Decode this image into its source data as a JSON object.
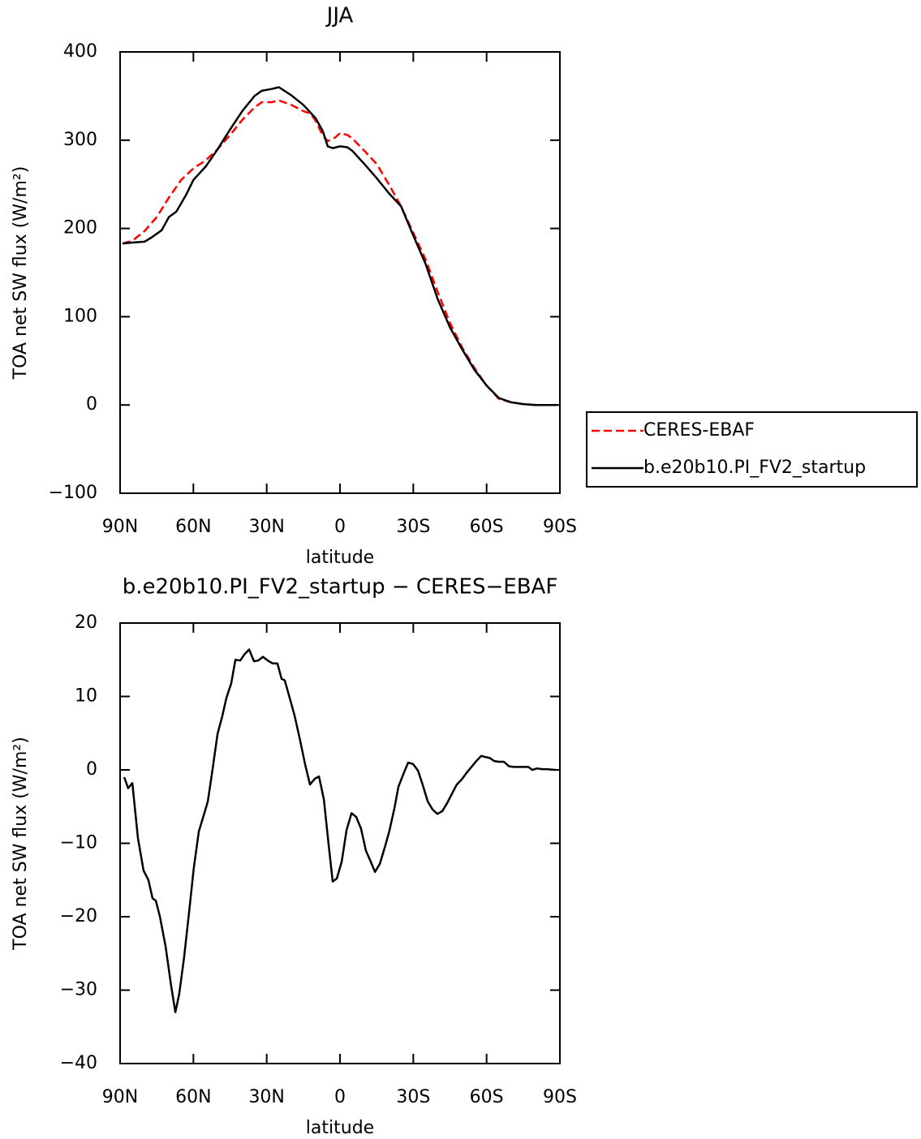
{
  "chart_data": [
    {
      "type": "line",
      "title": "JJA",
      "xlabel": "latitude",
      "ylabel": "TOA net SW flux (W/m²)",
      "xlim": [
        90,
        -90
      ],
      "ylim": [
        -100,
        400
      ],
      "xticks": [
        {
          "value": 90,
          "label": "90N"
        },
        {
          "value": 60,
          "label": "60N"
        },
        {
          "value": 30,
          "label": "30N"
        },
        0,
        {
          "value": -30,
          "label": "30S"
        },
        {
          "value": -60,
          "label": "60S"
        },
        {
          "value": -90,
          "label": "90S"
        }
      ],
      "yticks": [
        {
          "value": -100,
          "label": "−100"
        },
        0,
        100,
        200,
        300,
        400
      ],
      "legend": "outside-right",
      "series": [
        {
          "name": "CERES-EBAF",
          "color": "#ff0000",
          "dash": true,
          "x": [
            89,
            85,
            80,
            75,
            70,
            65,
            60,
            55,
            50,
            45,
            40,
            35,
            32,
            28,
            25,
            20,
            15,
            12,
            10,
            7,
            5,
            2,
            0,
            -3,
            -5,
            -10,
            -15,
            -20,
            -25,
            -30,
            -35,
            -40,
            -45,
            -50,
            -55,
            -60,
            -65,
            -70,
            -75,
            -80,
            -85,
            -89
          ],
          "values": [
            183,
            186,
            197,
            213,
            235,
            255,
            268,
            277,
            290,
            306,
            323,
            337,
            343,
            343,
            345,
            340,
            333,
            330,
            322,
            305,
            299,
            303,
            308,
            306,
            302,
            288,
            273,
            250,
            225,
            195,
            165,
            128,
            93,
            65,
            42,
            22,
            7,
            3,
            1,
            0,
            0,
            0
          ]
        },
        {
          "name": "b.e20b10.PI_FV2_startup",
          "color": "#000000",
          "dash": false,
          "x": [
            89,
            85,
            80,
            77,
            73,
            70,
            67,
            63,
            60,
            55,
            50,
            45,
            40,
            35,
            32,
            28,
            25,
            20,
            15,
            10,
            7,
            5,
            3,
            0,
            -3,
            -5,
            -10,
            -15,
            -20,
            -25,
            -30,
            -35,
            -40,
            -45,
            -50,
            -55,
            -60,
            -65,
            -70,
            -75,
            -80,
            -85,
            -89
          ],
          "values": [
            183,
            184,
            185,
            190,
            198,
            213,
            219,
            238,
            255,
            270,
            290,
            312,
            333,
            350,
            356,
            358,
            360,
            351,
            340,
            325,
            310,
            293,
            291,
            293,
            292,
            288,
            273,
            257,
            240,
            225,
            192,
            160,
            120,
            88,
            63,
            40,
            22,
            8,
            3,
            1,
            0,
            0,
            0
          ]
        }
      ]
    },
    {
      "type": "line",
      "title": "b.e20b10.PI_FV2_startup − CERES−EBAF",
      "xlabel": "latitude",
      "ylabel": "TOA net SW flux (W/m²)",
      "xlim": [
        90,
        -90
      ],
      "ylim": [
        -40,
        20
      ],
      "xticks": [
        {
          "value": 90,
          "label": "90N"
        },
        {
          "value": 60,
          "label": "60N"
        },
        {
          "value": 30,
          "label": "30N"
        },
        0,
        {
          "value": -30,
          "label": "30S"
        },
        {
          "value": -60,
          "label": "60S"
        },
        {
          "value": -90,
          "label": "90S"
        }
      ],
      "yticks": [
        {
          "value": -40,
          "label": "−40"
        },
        {
          "value": -30,
          "label": "−30"
        },
        {
          "value": -20,
          "label": "−20"
        },
        {
          "value": -10,
          "label": "−10"
        },
        0,
        10,
        20
      ],
      "color": "#000000",
      "x": [
        88.3,
        86.7,
        85,
        82.7,
        80.4,
        78.4,
        76.7,
        75.4,
        73.7,
        71.4,
        69.1,
        67.4,
        65.8,
        63.8,
        61.8,
        59.8,
        57.8,
        55.8,
        54.1,
        52.1,
        50.1,
        48.2,
        46.5,
        44.5,
        42.8,
        40.8,
        39.2,
        37.2,
        35.2,
        33.5,
        31.5,
        29.6,
        27.6,
        25.6,
        23.9,
        22.6,
        20.6,
        18.6,
        16.3,
        14.3,
        12.3,
        10.3,
        8.6,
        6.6,
        4.6,
        3,
        1.3,
        -0.7,
        -2.7,
        -4.7,
        -6.6,
        -8.6,
        -10.6,
        -12.6,
        -14.3,
        -16.3,
        -18.3,
        -20.3,
        -22.3,
        -23.9,
        -25.9,
        -27.9,
        -29.9,
        -31.9,
        -33.9,
        -35.9,
        -37.9,
        -39.9,
        -41.9,
        -43.9,
        -45.9,
        -47.8,
        -49.8,
        -51.8,
        -53.8,
        -55.8,
        -57.8,
        -61.4,
        -63.1,
        -65.1,
        -67.1,
        -69.1,
        -71.1,
        -75.1,
        -77.1,
        -78.7,
        -80.7,
        -82.7,
        -84.7,
        -88
      ],
      "values": [
        -1,
        -2.5,
        -1.8,
        -9.3,
        -13.7,
        -15,
        -17.5,
        -17.8,
        -20,
        -24,
        -29.4,
        -33,
        -30.5,
        -25.5,
        -19.5,
        -13.3,
        -8.4,
        -6.2,
        -4.3,
        0.2,
        4.9,
        7.3,
        9.8,
        11.8,
        15,
        14.9,
        15.7,
        16.4,
        14.8,
        14.9,
        15.4,
        14.9,
        14.5,
        14.5,
        12.4,
        12.2,
        9.8,
        7.4,
        4,
        0.8,
        -2,
        -1.2,
        -0.9,
        -4,
        -10.3,
        -15.2,
        -14.8,
        -12.5,
        -8.2,
        -5.9,
        -6.4,
        -8,
        -11,
        -12.5,
        -13.9,
        -12.8,
        -10.6,
        -8.2,
        -5.2,
        -2.3,
        -0.6,
        1,
        0.8,
        -0.1,
        -2.1,
        -4.3,
        -5.4,
        -6,
        -5.6,
        -4.5,
        -3.2,
        -2,
        -1.3,
        -0.4,
        0.4,
        1.2,
        1.9,
        1.6,
        1.2,
        1.1,
        1.1,
        0.5,
        0.4,
        0.4,
        0.4,
        0,
        0.2,
        0.1,
        0.1,
        0
      ]
    }
  ]
}
